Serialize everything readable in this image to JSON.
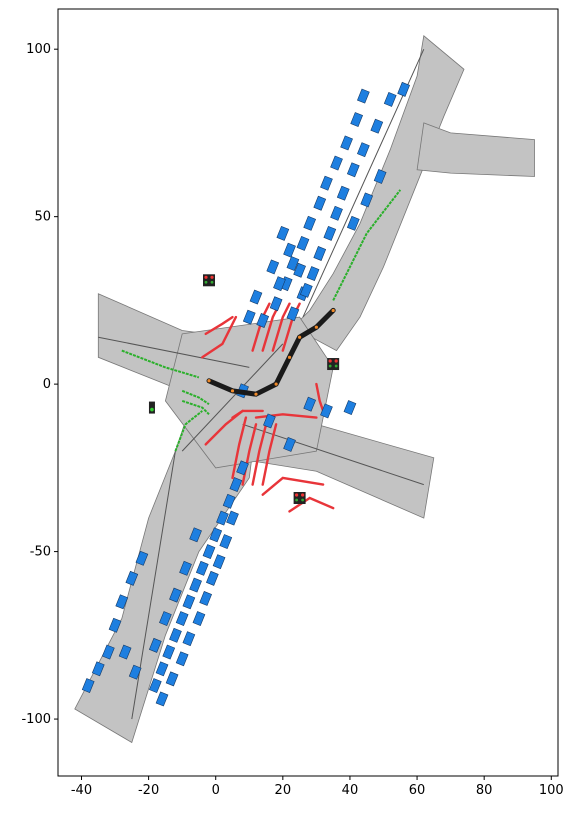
{
  "chart_data": {
    "type": "scatter",
    "title": "",
    "xlabel": "",
    "ylabel": "",
    "xlim": [
      -47,
      102
    ],
    "ylim": [
      -117,
      112
    ],
    "xticks": [
      -40,
      -20,
      0,
      20,
      40,
      60,
      80,
      100
    ],
    "yticks": [
      -100,
      -50,
      0,
      50,
      100
    ],
    "grid": false,
    "colors": {
      "road": "#c3c3c3",
      "road_edge": "#777777",
      "lane_marking": "#ffffff",
      "vehicle": "#1e7fe0",
      "vehicle_edge": "#153a66",
      "red_lane": "#e8353a",
      "green_lane": "#2bb02b",
      "ego_path": "#1a1a1a",
      "ego_marker": "#f08a2a"
    },
    "roads": [
      {
        "name": "north-arm",
        "points": [
          [
            23,
            17
          ],
          [
            28,
            22
          ],
          [
            35,
            33
          ],
          [
            43,
            48
          ],
          [
            52,
            70
          ],
          [
            60,
            92
          ],
          [
            62,
            104
          ],
          [
            74,
            94
          ],
          [
            68,
            80
          ],
          [
            60,
            60
          ],
          [
            50,
            35
          ],
          [
            43,
            20
          ],
          [
            36,
            10
          ]
        ]
      },
      {
        "name": "ne-spur",
        "points": [
          [
            62,
            78
          ],
          [
            70,
            75
          ],
          [
            95,
            73
          ],
          [
            95,
            62
          ],
          [
            70,
            63
          ],
          [
            60,
            64
          ]
        ]
      },
      {
        "name": "west-arm",
        "points": [
          [
            -35,
            27
          ],
          [
            -10,
            16
          ],
          [
            5,
            14
          ],
          [
            20,
            12
          ],
          [
            10,
            -8
          ],
          [
            -5,
            -4
          ],
          [
            -35,
            8
          ]
        ]
      },
      {
        "name": "east-arm",
        "points": [
          [
            10,
            -8
          ],
          [
            30,
            -12
          ],
          [
            65,
            -22
          ],
          [
            62,
            -40
          ],
          [
            30,
            -26
          ],
          [
            5,
            -22
          ]
        ]
      },
      {
        "name": "south-arm",
        "points": [
          [
            -8,
            -8
          ],
          [
            12,
            -12
          ],
          [
            10,
            -28
          ],
          [
            -5,
            -50
          ],
          [
            -15,
            -75
          ],
          [
            -25,
            -107
          ],
          [
            -42,
            -97
          ],
          [
            -28,
            -70
          ],
          [
            -20,
            -40
          ],
          [
            -12,
            -20
          ]
        ]
      },
      {
        "name": "center",
        "points": [
          [
            -10,
            15
          ],
          [
            25,
            20
          ],
          [
            35,
            5
          ],
          [
            30,
            -20
          ],
          [
            0,
            -25
          ],
          [
            -15,
            -5
          ]
        ]
      }
    ],
    "vehicles": [
      [
        56,
        88
      ],
      [
        52,
        85
      ],
      [
        48,
        77
      ],
      [
        44,
        70
      ],
      [
        41,
        64
      ],
      [
        38,
        57
      ],
      [
        36,
        51
      ],
      [
        34,
        45
      ],
      [
        31,
        39
      ],
      [
        29,
        33
      ],
      [
        26,
        27
      ],
      [
        23,
        21
      ],
      [
        44,
        86
      ],
      [
        42,
        79
      ],
      [
        39,
        72
      ],
      [
        36,
        66
      ],
      [
        33,
        60
      ],
      [
        31,
        54
      ],
      [
        28,
        48
      ],
      [
        26,
        42
      ],
      [
        23,
        36
      ],
      [
        21,
        30
      ],
      [
        18,
        24
      ],
      [
        14,
        19
      ],
      [
        20,
        45
      ],
      [
        22,
        40
      ],
      [
        25,
        34
      ],
      [
        27,
        28
      ],
      [
        17,
        35
      ],
      [
        19,
        30
      ],
      [
        12,
        26
      ],
      [
        10,
        20
      ],
      [
        49,
        62
      ],
      [
        45,
        55
      ],
      [
        41,
        48
      ],
      [
        8,
        -2
      ],
      [
        28,
        -6
      ],
      [
        33,
        -8
      ],
      [
        40,
        -7
      ],
      [
        16,
        -11
      ],
      [
        22,
        -18
      ],
      [
        8,
        -25
      ],
      [
        6,
        -30
      ],
      [
        4,
        -35
      ],
      [
        2,
        -40
      ],
      [
        0,
        -45
      ],
      [
        -2,
        -50
      ],
      [
        -4,
        -55
      ],
      [
        -6,
        -60
      ],
      [
        -8,
        -65
      ],
      [
        -10,
        -70
      ],
      [
        -12,
        -75
      ],
      [
        -14,
        -80
      ],
      [
        -16,
        -85
      ],
      [
        -18,
        -90
      ],
      [
        5,
        -40
      ],
      [
        3,
        -47
      ],
      [
        1,
        -53
      ],
      [
        -1,
        -58
      ],
      [
        -3,
        -64
      ],
      [
        -5,
        -70
      ],
      [
        -8,
        -76
      ],
      [
        -10,
        -82
      ],
      [
        -13,
        -88
      ],
      [
        -16,
        -94
      ],
      [
        -22,
        -52
      ],
      [
        -25,
        -58
      ],
      [
        -28,
        -65
      ],
      [
        -30,
        -72
      ],
      [
        -32,
        -80
      ],
      [
        -35,
        -85
      ],
      [
        -38,
        -90
      ],
      [
        -27,
        -80
      ],
      [
        -24,
        -86
      ],
      [
        -6,
        -45
      ],
      [
        -9,
        -55
      ],
      [
        -12,
        -63
      ],
      [
        -15,
        -70
      ],
      [
        -18,
        -78
      ]
    ],
    "red_paths": [
      [
        [
          -3,
          15
        ],
        [
          2,
          18
        ],
        [
          5,
          20
        ]
      ],
      [
        [
          -4,
          8
        ],
        [
          2,
          12
        ],
        [
          6,
          20
        ]
      ],
      [
        [
          12,
          -10
        ],
        [
          20,
          -9
        ],
        [
          30,
          -10
        ]
      ],
      [
        [
          5,
          -10
        ],
        [
          8,
          -8
        ],
        [
          14,
          -8
        ]
      ],
      [
        [
          30,
          0
        ],
        [
          31,
          -5
        ],
        [
          32,
          -8
        ]
      ],
      [
        [
          -3,
          -18
        ],
        [
          3,
          -12
        ],
        [
          8,
          -8
        ]
      ],
      [
        [
          14,
          -33
        ],
        [
          20,
          -28
        ],
        [
          32,
          -30
        ]
      ],
      [
        [
          22,
          -38
        ],
        [
          28,
          -34
        ],
        [
          35,
          -37
        ]
      ],
      [
        [
          11,
          10
        ],
        [
          14,
          20
        ],
        [
          16,
          24
        ]
      ],
      [
        [
          14,
          10
        ],
        [
          17,
          20
        ],
        [
          19,
          24
        ]
      ],
      [
        [
          17,
          10
        ],
        [
          20,
          20
        ],
        [
          22,
          24
        ]
      ],
      [
        [
          20,
          10
        ],
        [
          23,
          20
        ],
        [
          25,
          24
        ]
      ],
      [
        [
          8,
          -30
        ],
        [
          10,
          -20
        ],
        [
          12,
          -12
        ]
      ],
      [
        [
          11,
          -30
        ],
        [
          13,
          -20
        ],
        [
          15,
          -12
        ]
      ],
      [
        [
          14,
          -30
        ],
        [
          16,
          -20
        ],
        [
          18,
          -12
        ]
      ],
      [
        [
          5,
          -28
        ],
        [
          7,
          -18
        ],
        [
          9,
          -10
        ]
      ]
    ],
    "green_paths": [
      [
        [
          -28,
          10
        ],
        [
          -15,
          5
        ],
        [
          -5,
          2
        ]
      ],
      [
        [
          -10,
          -2
        ],
        [
          -5,
          -4
        ],
        [
          -2,
          -6
        ]
      ],
      [
        [
          -10,
          -5
        ],
        [
          -4,
          -7
        ],
        [
          -2,
          -9
        ]
      ],
      [
        [
          -12,
          -20
        ],
        [
          -9,
          -12
        ],
        [
          -4,
          -8
        ]
      ],
      [
        [
          35,
          25
        ],
        [
          45,
          45
        ],
        [
          55,
          58
        ]
      ]
    ],
    "ego_path": [
      [
        -2,
        1
      ],
      [
        5,
        -2
      ],
      [
        12,
        -3
      ],
      [
        18,
        0
      ],
      [
        22,
        8
      ],
      [
        25,
        14
      ],
      [
        30,
        17
      ],
      [
        35,
        22
      ]
    ],
    "traffic_lights": [
      {
        "x": -2,
        "y": 31,
        "state": "red"
      },
      {
        "x": 35,
        "y": 6,
        "state": "red"
      },
      {
        "x": -19,
        "y": -7,
        "state": "green"
      },
      {
        "x": 25,
        "y": -34,
        "state": "red"
      }
    ]
  }
}
